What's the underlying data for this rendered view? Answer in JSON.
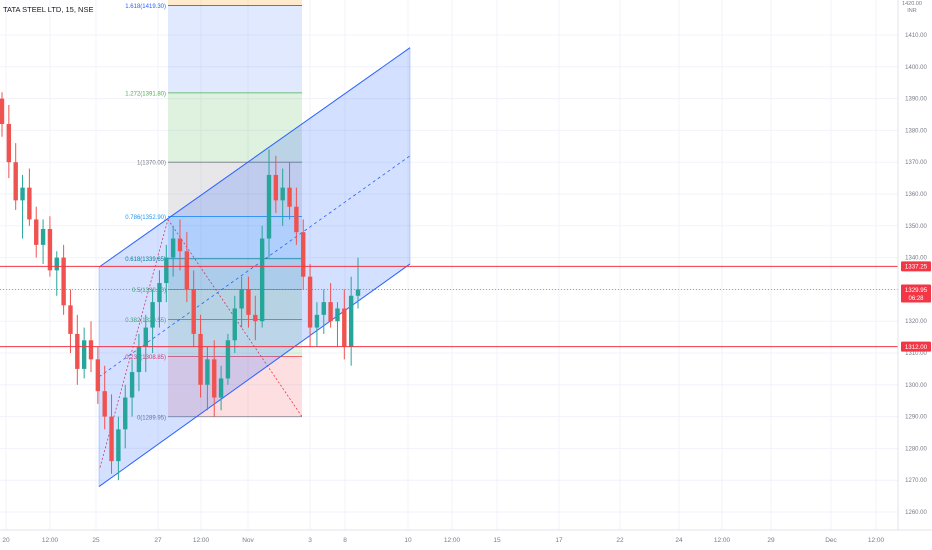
{
  "chart_data": {
    "type": "candlestick",
    "title": "TATA STEEL LTD, 15, NSE",
    "currency": "INR",
    "y_axis": {
      "ticks": [
        1410,
        1400,
        1390,
        1380,
        1370,
        1360,
        1350,
        1340,
        1330,
        1320,
        1310,
        1300,
        1290,
        1280,
        1270,
        1260
      ],
      "tick_labels": [
        "1410.00",
        "1400.00",
        "1390.00",
        "1380.00",
        "1370.00",
        "1360.00",
        "1350.00",
        "1340.00",
        "1330.00",
        "1320.00",
        "1310.00",
        "1300.00",
        "1290.00",
        "1280.00",
        "1270.00",
        "1260.00"
      ],
      "top_partial_label": "1420.00"
    },
    "x_axis": {
      "tick_labels": [
        "20",
        "12:00",
        "25",
        "27",
        "12:00",
        "Nov",
        "3",
        "8",
        "10",
        "12:00",
        "15",
        "17",
        "22",
        "24",
        "12:00",
        "29",
        "Dec",
        "12:00"
      ]
    },
    "price_lines": [
      {
        "value": 1337.25,
        "label": "1337.25",
        "color": "#f23645"
      },
      {
        "value": 1312.0,
        "label": "1312.00",
        "color": "#f23645"
      }
    ],
    "last_price": {
      "value": 1329.95,
      "label": "1329.95",
      "countdown": "06:28",
      "color": "#f23645"
    },
    "fibonacci": {
      "levels": [
        {
          "ratio": "1.618",
          "price": 1419.3,
          "label": "1.618(1419.30)",
          "color": "#2962ff"
        },
        {
          "ratio": "1.272",
          "price": 1391.8,
          "label": "1.272(1391.80)",
          "color": "#4caf50"
        },
        {
          "ratio": "1",
          "price": 1370.0,
          "label": "1(1370.00)",
          "color": "#787b86"
        },
        {
          "ratio": "0.786",
          "price": 1352.9,
          "label": "0.786(1352.90)",
          "color": "#2196f3"
        },
        {
          "ratio": "0.618",
          "price": 1339.65,
          "label": "0.618(1339.65)",
          "color": "#00897b"
        },
        {
          "ratio": "0.5",
          "price": 1330.0,
          "label": "0.5(1330.00)",
          "color": "#4caf50"
        },
        {
          "ratio": "0.382",
          "price": 1320.55,
          "label": "0.382(1320.55)",
          "color": "#4caf50"
        },
        {
          "ratio": "0.236",
          "price": 1308.85,
          "label": "0.236(1308.85)",
          "color": "#f23645"
        },
        {
          "ratio": "0",
          "price": 1289.95,
          "label": "0(1289.95)",
          "color": "#787b86"
        }
      ]
    },
    "series": [
      {
        "name": "",
        "ohlc": [
          [
            1390,
            1392,
            1378,
            1382
          ],
          [
            1382,
            1388,
            1365,
            1370
          ],
          [
            1370,
            1376,
            1355,
            1358
          ],
          [
            1358,
            1366,
            1346,
            1362
          ],
          [
            1362,
            1368,
            1350,
            1352
          ],
          [
            1352,
            1356,
            1340,
            1344
          ],
          [
            1344,
            1352,
            1338,
            1349
          ],
          [
            1349,
            1353,
            1334,
            1336
          ],
          [
            1336,
            1342,
            1328,
            1340
          ],
          [
            1340,
            1344,
            1322,
            1325
          ],
          [
            1325,
            1330,
            1310,
            1316
          ],
          [
            1316,
            1322,
            1300,
            1305
          ],
          [
            1305,
            1318,
            1302,
            1314
          ],
          [
            1314,
            1320,
            1304,
            1308
          ],
          [
            1308,
            1312,
            1294,
            1298
          ],
          [
            1298,
            1306,
            1286,
            1290
          ],
          [
            1290,
            1297,
            1272,
            1276
          ],
          [
            1276,
            1290,
            1270,
            1286
          ],
          [
            1286,
            1300,
            1280,
            1296
          ],
          [
            1296,
            1308,
            1290,
            1304
          ],
          [
            1304,
            1316,
            1298,
            1312
          ],
          [
            1312,
            1322,
            1304,
            1318
          ],
          [
            1318,
            1330,
            1310,
            1326
          ],
          [
            1326,
            1336,
            1318,
            1332
          ],
          [
            1332,
            1344,
            1326,
            1340
          ],
          [
            1340,
            1350,
            1334,
            1346
          ],
          [
            1346,
            1352,
            1336,
            1342
          ],
          [
            1342,
            1348,
            1326,
            1330
          ],
          [
            1330,
            1336,
            1312,
            1316
          ],
          [
            1316,
            1322,
            1296,
            1300
          ],
          [
            1300,
            1312,
            1292,
            1308
          ],
          [
            1308,
            1314,
            1290,
            1296
          ],
          [
            1296,
            1306,
            1292,
            1302
          ],
          [
            1302,
            1316,
            1300,
            1314
          ],
          [
            1314,
            1328,
            1310,
            1324
          ],
          [
            1324,
            1334,
            1318,
            1330
          ],
          [
            1330,
            1334,
            1318,
            1322
          ],
          [
            1322,
            1328,
            1314,
            1320
          ],
          [
            1320,
            1350,
            1318,
            1346
          ],
          [
            1346,
            1374,
            1340,
            1366
          ],
          [
            1366,
            1372,
            1354,
            1358
          ],
          [
            1358,
            1368,
            1350,
            1362
          ],
          [
            1362,
            1370,
            1352,
            1356
          ],
          [
            1356,
            1362,
            1344,
            1348
          ],
          [
            1348,
            1352,
            1330,
            1334
          ],
          [
            1334,
            1338,
            1312,
            1318
          ],
          [
            1318,
            1326,
            1312,
            1322
          ],
          [
            1322,
            1330,
            1316,
            1326
          ],
          [
            1326,
            1332,
            1318,
            1320
          ],
          [
            1320,
            1326,
            1312,
            1324
          ],
          [
            1324,
            1330,
            1308,
            1312
          ],
          [
            1312,
            1334,
            1306,
            1328
          ],
          [
            1328,
            1340,
            1324,
            1330
          ]
        ]
      }
    ],
    "overlays": [
      {
        "kind": "parallel_channel"
      },
      {
        "kind": "fib_extension_boxes"
      },
      {
        "kind": "dashed_midline"
      }
    ],
    "ylim": [
      1255,
      1425
    ],
    "grid": true,
    "background": "#ffffff",
    "colors": {
      "up": "#26a69a",
      "down": "#ef5350",
      "channel": "#2962ff",
      "channel_fill": "#2962ff"
    }
  }
}
